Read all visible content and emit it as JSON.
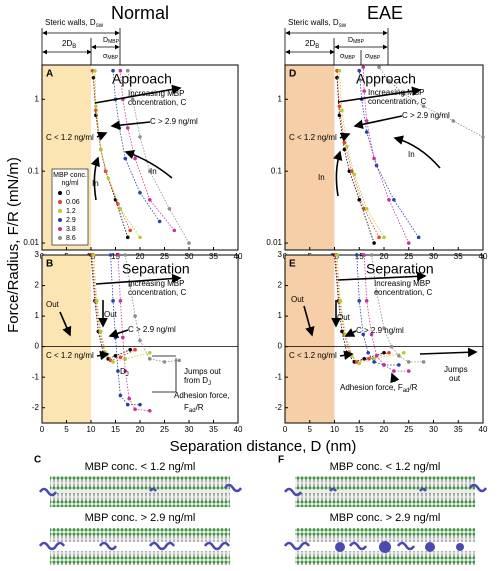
{
  "figure": {
    "columns": [
      "Normal",
      "EAE"
    ],
    "y_label": "Force/Radius, F/R (mN/m)",
    "x_label": "Separation distance, D (nm)",
    "header": {
      "steric": [
        "Steric walls, D",
        "sw"
      ],
      "two_db": [
        "2D",
        "B"
      ],
      "d_mbp": [
        "D",
        "MBP"
      ],
      "sigma": [
        "σ",
        "MBP"
      ]
    }
  },
  "chart_data": [
    {
      "type": "scatter",
      "panel": "A",
      "log_y": true,
      "xlim": [
        0,
        40
      ],
      "ylim": [
        0.008,
        3
      ],
      "xticks": [
        0,
        5,
        10,
        15,
        20,
        25,
        30,
        35,
        40
      ],
      "yticks": [
        0.01,
        0.1,
        1
      ],
      "shade": {
        "range": [
          0,
          10
        ],
        "color": "#fbe6b3"
      },
      "legend": "lower-left",
      "legend_title": [
        "MBP conc.",
        "ng/ml"
      ],
      "annotations": [
        "Approach",
        "Increasing MBP",
        "concentration, C",
        "C > 2.9 ng/ml",
        "C < 1.2 ng/ml",
        "In",
        "In"
      ],
      "series": [
        {
          "name": "0",
          "color": "#000000",
          "x": [
            17.5,
            15,
            13,
            12,
            11,
            10.5
          ],
          "values": [
            0.012,
            0.04,
            0.1,
            0.2,
            0.6,
            2
          ]
        },
        {
          "name": "0.06",
          "color": "#e8402a",
          "x": [
            18,
            15.5,
            13,
            12,
            11,
            10.3
          ],
          "values": [
            0.015,
            0.035,
            0.1,
            0.2,
            0.7,
            2.5
          ]
        },
        {
          "name": "1.2",
          "color": "#b5cc2e",
          "x": [
            20,
            16,
            13.5,
            12,
            11,
            10.8
          ],
          "values": [
            0.012,
            0.03,
            0.08,
            0.2,
            0.8,
            2.5
          ]
        },
        {
          "name": "2.9",
          "color": "#2b3fa8",
          "x": [
            24,
            20,
            17,
            15.8,
            15,
            14.5
          ],
          "values": [
            0.02,
            0.05,
            0.15,
            0.4,
            1,
            2.5
          ]
        },
        {
          "name": "3.8",
          "color": "#c2339b",
          "x": [
            27,
            22,
            19,
            17.5,
            16.5,
            16
          ],
          "values": [
            0.015,
            0.04,
            0.15,
            0.4,
            1,
            2.5
          ]
        },
        {
          "name": "8.6",
          "color": "#8c8c8c",
          "x": [
            30,
            26,
            22,
            20,
            18.5,
            17.5
          ],
          "values": [
            0.01,
            0.03,
            0.1,
            0.3,
            1,
            2.5
          ]
        }
      ]
    },
    {
      "type": "scatter",
      "panel": "B",
      "log_y": false,
      "zero_line": true,
      "xlim": [
        0,
        40
      ],
      "ylim": [
        -2.5,
        3
      ],
      "xticks": [
        0,
        5,
        10,
        15,
        20,
        25,
        30,
        35,
        40
      ],
      "yticks": [
        -2,
        -1,
        0,
        1,
        2,
        3
      ],
      "shade": {
        "range": [
          0,
          10
        ],
        "color": "#fbe6b3"
      },
      "annotations": [
        "Separation",
        "Increasing MBP",
        "concentration, C",
        "Out",
        "Out",
        "C > 2.9 ng/ml",
        "C < 1.2 ng/ml",
        [
          "D",
          "J"
        ],
        "Jumps out",
        [
          "from D",
          "J"
        ],
        "Adhesion force,",
        [
          "F",
          "ad",
          "/R"
        ]
      ],
      "series": [
        {
          "color": "#000000",
          "x": [
            10,
            10.8,
            11.5,
            12.5,
            13.5,
            15,
            18
          ],
          "values": [
            3,
            1.5,
            0.5,
            -0.2,
            -0.4,
            -0.3,
            -0.1
          ]
        },
        {
          "color": "#e8402a",
          "x": [
            10.2,
            11,
            11.8,
            12.8,
            14,
            16,
            19
          ],
          "values": [
            3,
            1.5,
            0.5,
            -0.2,
            -0.45,
            -0.35,
            -0.1
          ]
        },
        {
          "color": "#b5cc2e",
          "x": [
            10.5,
            11.2,
            12,
            13,
            14.5,
            17,
            22
          ],
          "values": [
            3,
            1.5,
            0.5,
            -0.2,
            -0.5,
            -0.4,
            -0.2
          ]
        },
        {
          "color": "#2b3fa8",
          "x": [
            14,
            14.5,
            15,
            15.5,
            16,
            17.5,
            20
          ],
          "values": [
            3,
            1.5,
            0.3,
            -0.8,
            -1.6,
            -1.9,
            -1.9
          ]
        },
        {
          "color": "#c2339b",
          "x": [
            15.5,
            16,
            16.5,
            17,
            17.8,
            19,
            22
          ],
          "values": [
            3,
            1.5,
            0.3,
            -0.8,
            -1.7,
            -2.05,
            -2.1
          ]
        },
        {
          "color": "#8c8c8c",
          "x": [
            17,
            18,
            19,
            20,
            22,
            25,
            28
          ],
          "values": [
            3,
            2,
            1,
            0.2,
            -0.4,
            -0.5,
            -0.45
          ]
        }
      ]
    },
    {
      "type": "scatter",
      "panel": "D",
      "log_y": true,
      "xlim": [
        0,
        40
      ],
      "ylim": [
        0.008,
        3
      ],
      "xticks": [
        0,
        5,
        10,
        15,
        20,
        25,
        30,
        35,
        40
      ],
      "yticks": [
        0.01,
        0.1,
        1
      ],
      "shade": {
        "range": [
          0,
          10
        ],
        "color": "#f6cfa8"
      },
      "annotations": [
        "Approach",
        "Increasing MBP",
        "concentration, C",
        "C > 2.9 ng/ml",
        "C < 1.2 ng/ml",
        "In",
        "In"
      ],
      "series": [
        {
          "color": "#000000",
          "x": [
            18,
            15,
            13,
            12,
            11,
            10.5
          ],
          "values": [
            0.01,
            0.04,
            0.1,
            0.2,
            0.6,
            2
          ]
        },
        {
          "color": "#e8402a",
          "x": [
            19,
            16,
            13.5,
            12,
            11,
            10.5
          ],
          "values": [
            0.012,
            0.03,
            0.1,
            0.25,
            0.8,
            2.5
          ]
        },
        {
          "color": "#b5cc2e",
          "x": [
            20,
            16.5,
            14,
            12.5,
            11.5,
            11
          ],
          "values": [
            0.012,
            0.03,
            0.09,
            0.22,
            0.7,
            2.5
          ]
        },
        {
          "color": "#2b3fa8",
          "x": [
            27,
            22,
            18.5,
            16.5,
            15.5,
            15
          ],
          "values": [
            0.012,
            0.04,
            0.12,
            0.35,
            1,
            2.5
          ]
        },
        {
          "color": "#c2339b",
          "x": [
            25,
            21,
            18,
            16.5,
            16,
            15.8
          ],
          "values": [
            0.01,
            0.04,
            0.15,
            0.5,
            1.3,
            2.8
          ]
        },
        {
          "color": "#8c8c8c",
          "x": [
            40,
            34,
            28,
            24,
            21,
            19
          ],
          "values": [
            0.3,
            0.5,
            0.8,
            1.2,
            1.8,
            2.8
          ]
        }
      ]
    },
    {
      "type": "scatter",
      "panel": "E",
      "log_y": false,
      "zero_line": true,
      "xlim": [
        0,
        40
      ],
      "ylim": [
        -2.5,
        3
      ],
      "xticks": [
        0,
        5,
        10,
        15,
        20,
        25,
        30,
        35,
        40
      ],
      "yticks": [
        -2,
        -1,
        0,
        1,
        2,
        3
      ],
      "shade": {
        "range": [
          0,
          10
        ],
        "color": "#f6cfa8"
      },
      "annotations": [
        "Separation",
        "Increasing MBP",
        "concentration, C",
        "Out",
        "Out",
        "C > 2.9 ng/ml",
        "C < 1.2 ng/ml",
        "Jumps",
        "out",
        [
          "Adhesion force, F",
          "ad",
          "/R"
        ]
      ],
      "series": [
        {
          "color": "#000000",
          "x": [
            10,
            10.8,
            11.5,
            12.5,
            14,
            16,
            20
          ],
          "values": [
            3,
            1.5,
            0.5,
            -0.2,
            -0.5,
            -0.4,
            -0.2
          ]
        },
        {
          "color": "#e8402a",
          "x": [
            10.2,
            11,
            12,
            13,
            14.5,
            17,
            21
          ],
          "values": [
            3,
            1.5,
            0.4,
            -0.2,
            -0.5,
            -0.4,
            -0.2
          ]
        },
        {
          "color": "#b5cc2e",
          "x": [
            10.5,
            11.2,
            12.2,
            13.5,
            15,
            18,
            24
          ],
          "values": [
            3,
            1.5,
            0.4,
            -0.3,
            -0.55,
            -0.4,
            -0.2
          ]
        },
        {
          "color": "#2b3fa8",
          "x": [
            14.5,
            15,
            15.8,
            16.8,
            18,
            20,
            23
          ],
          "values": [
            3,
            1.5,
            0.4,
            -0.2,
            -0.5,
            -0.6,
            -0.6
          ]
        },
        {
          "color": "#c2339b",
          "x": [
            16,
            16.5,
            17.5,
            18.5,
            20,
            22,
            25
          ],
          "values": [
            3,
            1.5,
            0.4,
            -0.3,
            -0.6,
            -0.8,
            -0.8
          ]
        },
        {
          "color": "#8c8c8c",
          "x": [
            17.5,
            18.5,
            20,
            21.5,
            23,
            25,
            28
          ],
          "values": [
            3,
            1.8,
            0.6,
            0,
            -0.3,
            -0.5,
            -0.5
          ]
        }
      ]
    }
  ],
  "diagrams": [
    {
      "panel": "C",
      "top": "MBP conc. < 1.2 ng/ml",
      "bottom": "MBP conc. > 2.9 ng/ml"
    },
    {
      "panel": "F",
      "top": "MBP conc. < 1.2 ng/ml",
      "bottom": "MBP conc. > 2.9 ng/ml"
    }
  ]
}
